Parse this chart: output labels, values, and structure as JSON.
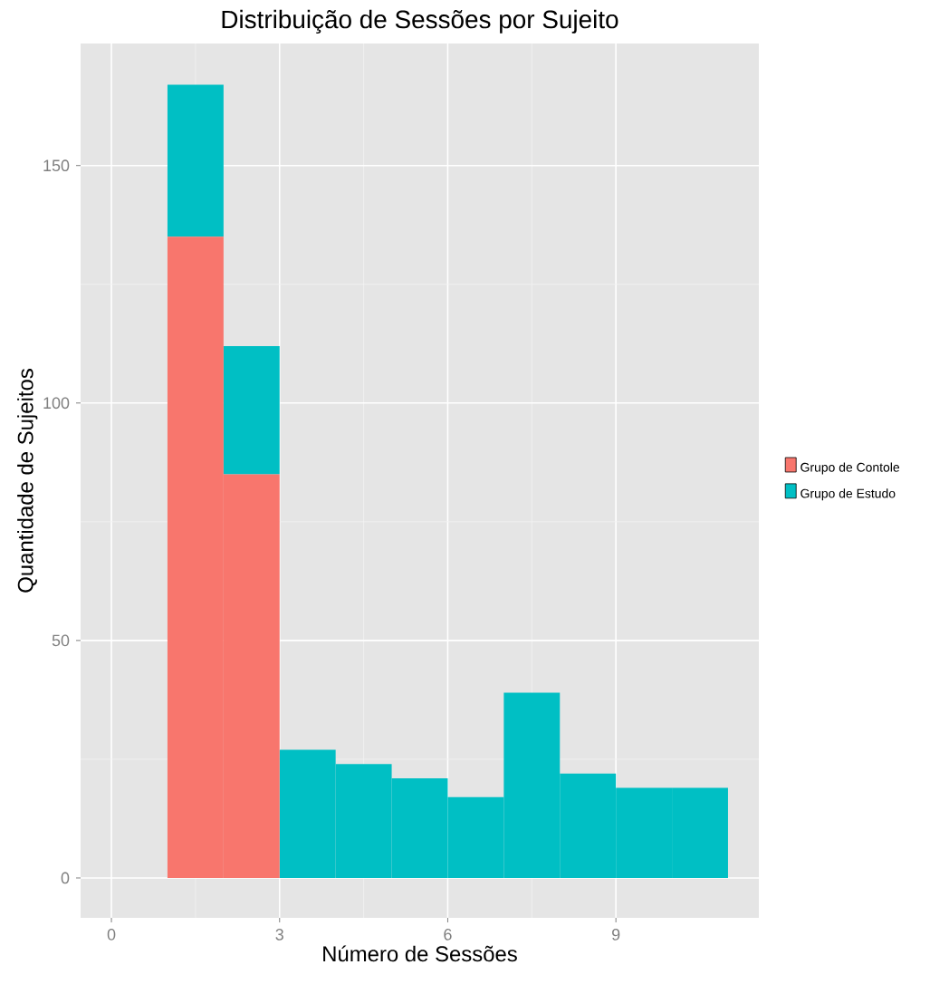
{
  "chart_data": {
    "type": "bar",
    "title": "Distribuição de Sessões por Sujeito",
    "xlabel": "Número de Sessões",
    "ylabel": "Quantidade de Sujeitos",
    "x": [
      1.5,
      2.5,
      3.5,
      4.5,
      5.5,
      6.5,
      7.5,
      8.5,
      9.5,
      10.5
    ],
    "series": [
      {
        "name": "Grupo de Contole",
        "color": "#f8766d",
        "values": [
          135,
          85,
          0,
          0,
          0,
          0,
          0,
          0,
          0,
          0
        ]
      },
      {
        "name": "Grupo de Estudo",
        "color": "#00bfc4",
        "values": [
          32,
          27,
          27,
          24,
          21,
          17,
          39,
          22,
          19,
          19
        ]
      }
    ],
    "stacked": true,
    "xlim": [
      -0.55,
      11.55
    ],
    "ylim": [
      -8.4,
      175.7
    ],
    "xticks": [
      0,
      3,
      6,
      9
    ],
    "yticks": [
      0,
      50,
      100,
      150
    ],
    "grid": true,
    "legend": "right"
  }
}
